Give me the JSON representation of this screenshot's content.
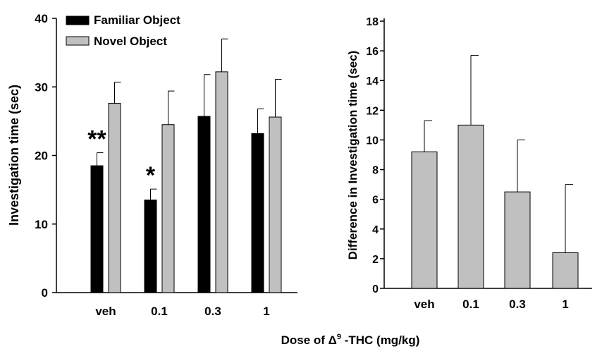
{
  "chart_data": [
    {
      "type": "bar",
      "categories": [
        "veh",
        "0.1",
        "0.3",
        "1"
      ],
      "series": [
        {
          "name": "Familiar Object",
          "color": "#000000",
          "values": [
            18.5,
            13.5,
            25.7,
            23.2
          ],
          "errors": [
            1.9,
            1.6,
            6.1,
            3.6
          ]
        },
        {
          "name": "Novel Object",
          "color": "#c0c0c0",
          "values": [
            27.6,
            24.5,
            32.2,
            25.6
          ],
          "errors": [
            3.1,
            4.9,
            4.8,
            5.5
          ]
        }
      ],
      "annotations": [
        {
          "category": "veh",
          "text": "**"
        },
        {
          "category": "0.1",
          "text": "*"
        }
      ],
      "ylabel": "Investigation time (sec)",
      "ylim": [
        0,
        40
      ],
      "yticks": [
        0,
        10,
        20,
        30,
        40
      ],
      "legend": "top-left",
      "grid": false
    },
    {
      "type": "bar",
      "categories": [
        "veh",
        "0.1",
        "0.3",
        "1"
      ],
      "series": [
        {
          "color": "#c0c0c0",
          "values": [
            9.2,
            11.0,
            6.5,
            2.4
          ],
          "errors": [
            2.1,
            4.7,
            3.5,
            4.6
          ]
        }
      ],
      "ylabel": "Difference in Investigation time (sec)",
      "ylim": [
        0,
        18
      ],
      "yticks": [
        0,
        2,
        4,
        6,
        8,
        10,
        12,
        14,
        16,
        18
      ],
      "grid": false
    }
  ],
  "shared_xlabel": {
    "main": "Dose of ",
    "delta": "Δ",
    "sup": "9",
    "rest": " -THC (mg/kg)"
  }
}
